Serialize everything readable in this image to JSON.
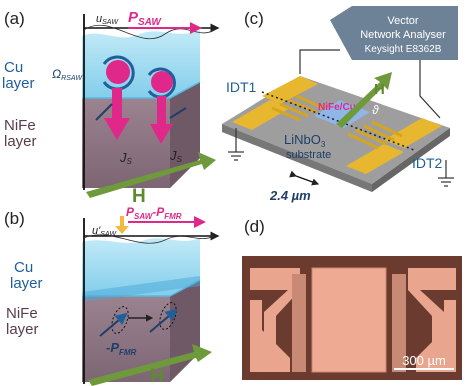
{
  "panels": {
    "a": {
      "label": "(a)",
      "u_saw": "u",
      "u_saw_sub": "SAW",
      "p_saw": "P",
      "p_saw_sub": "SAW",
      "omega": "Ω",
      "omega_sub": "RSAW",
      "cu": [
        "Cu",
        "layer"
      ],
      "nife": [
        "NiFe",
        "layer"
      ],
      "js_left": "J",
      "js_left_sub": "S",
      "js_right": "J",
      "js_right_sub": "S",
      "h": "H"
    },
    "b": {
      "label": "(b)",
      "u_saw": "u'",
      "u_saw_sub": "SAW",
      "p_top": "P",
      "p_top_sub1": "SAW",
      "p_top_mid": "-P",
      "p_top_sub2": "FMR",
      "cu": [
        "Cu",
        "layer"
      ],
      "nife": [
        "NiFe",
        "layer"
      ],
      "p_fmr": "-P",
      "p_fmr_sub": "FMR",
      "h": "H"
    },
    "c": {
      "label": "(c)",
      "vna": [
        "Vector",
        "Network Analyser",
        "Keysight E8362B"
      ],
      "idt1": "IDT1",
      "idt2": "IDT2",
      "nife_cu": "NiFe/Cu",
      "h": "H",
      "theta": "ϑ",
      "substrate": [
        "LiNbO",
        "3",
        "substrate"
      ],
      "dim": "2.4 µm"
    },
    "d": {
      "label": "(d)",
      "scale": "300 µm"
    }
  },
  "colors": {
    "magenta": "#e0288a",
    "cu_blue": "#8fd6f0",
    "nife_mauve": "#8a7280",
    "arrow_green": "#6f9a3c",
    "gold": "#e8b730",
    "vna_box": "#6d8296",
    "text_blue": "#1f5f9a",
    "chip_bg": "#6a3b2e",
    "chip_pad": "#e9a58e"
  }
}
